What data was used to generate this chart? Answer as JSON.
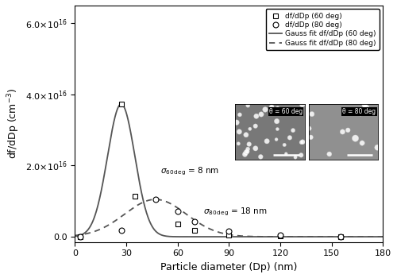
{
  "title": "",
  "xlabel": "Particle diameter (Dp) (nm)",
  "ylabel": "df/dDp (cm$^{-3}$)",
  "xlim": [
    0,
    180
  ],
  "ylim": [
    -1500000000000000.0,
    6.5e+16
  ],
  "yticks": [
    0,
    2e+16,
    4e+16,
    6e+16
  ],
  "ytick_labels": [
    "0.0",
    "2.0×10$^{16}$",
    "4.0×10$^{16}$",
    "6.0×10$^{16}$"
  ],
  "xticks": [
    0,
    30,
    60,
    90,
    120,
    150,
    180
  ],
  "gauss60_mu": 27,
  "gauss60_sigma": 8,
  "gauss60_amp": 3.73e+16,
  "gauss80_mu": 47,
  "gauss80_sigma": 18,
  "gauss80_amp": 1.05e+16,
  "data60_x": [
    3,
    27,
    35,
    60,
    70,
    90,
    120,
    155
  ],
  "data60_y": [
    0.0,
    3.73e+16,
    1.15e+16,
    3500000000000000.0,
    1800000000000000.0,
    500000000000000.0,
    200000000000000.0,
    0.0
  ],
  "data80_x": [
    3,
    27,
    47,
    60,
    70,
    90,
    120,
    155
  ],
  "data80_y": [
    100000000000000.0,
    1800000000000000.0,
    1.05e+16,
    7200000000000000.0,
    4200000000000000.0,
    1500000000000000.0,
    400000000000000.0,
    100000000000000.0
  ],
  "sigma60_ann_x": 50,
  "sigma60_ann_y": 1.78e+16,
  "sigma80_ann_x": 75,
  "sigma80_ann_y": 6500000000000000.0,
  "legend_entries": [
    "df/dDp (60 deg)",
    "df/dDp (80 deg)",
    "Gauss fit df/dDp (60 deg)",
    "Gauss fit df/dDp (80 deg)"
  ],
  "line_color": "#555555",
  "inset1_label": "θ = 60 deg",
  "inset2_label": "θ = 80 deg",
  "inset1_bg": "#787878",
  "inset2_bg": "#909090"
}
